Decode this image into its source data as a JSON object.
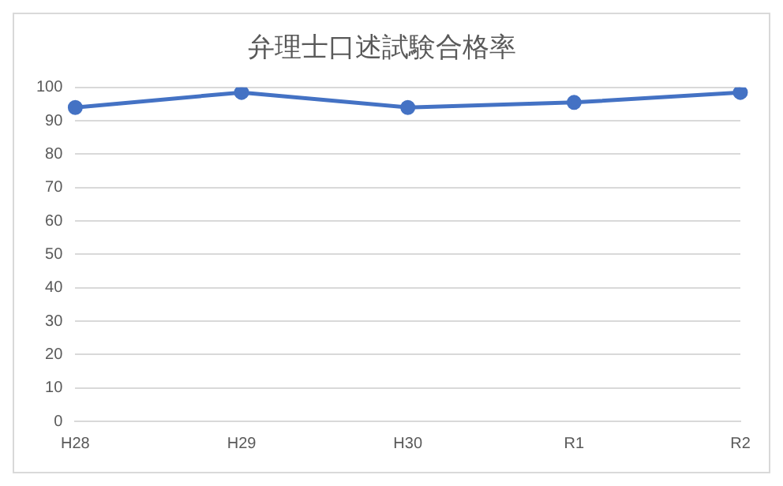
{
  "chart_data": {
    "type": "line",
    "title": "弁理士口述試験合格率",
    "categories": [
      "H28",
      "H29",
      "H30",
      "R1",
      "R2"
    ],
    "series": [
      {
        "color": "#4472c4",
        "values": [
          94,
          98.5,
          94,
          95.5,
          98.5
        ]
      }
    ],
    "ylim": [
      0,
      100
    ],
    "yticks": [
      0,
      10,
      20,
      30,
      40,
      50,
      60,
      70,
      80,
      90,
      100
    ],
    "grid": "y",
    "legend": false,
    "marker": "circle",
    "line_style": "solid"
  }
}
